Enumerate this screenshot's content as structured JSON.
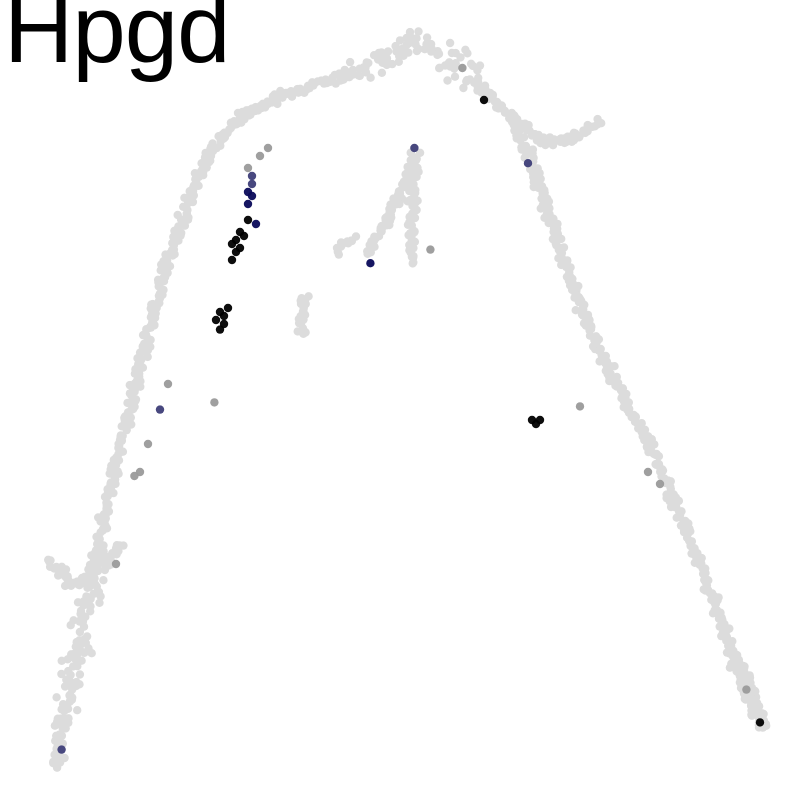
{
  "chart_data": {
    "type": "scatter",
    "title": "Hpgd",
    "xlabel": "",
    "ylabel": "",
    "xlim": [
      0,
      100
    ],
    "ylim": [
      0,
      100
    ],
    "grid": false,
    "legend": "none",
    "colors": {
      "background_cells": "#dcdcdc",
      "low_expression": "#9a9a9a",
      "mid_expression": "#3e3e78",
      "high_expression": "#0a0a5a",
      "max_expression": "#000000"
    },
    "backbone": [
      [
        7.0,
        4.0
      ],
      [
        7.5,
        8.0
      ],
      [
        8.5,
        13.0
      ],
      [
        10.0,
        20.0
      ],
      [
        11.5,
        27.0
      ],
      [
        12.5,
        33.0
      ],
      [
        14.0,
        40.0
      ],
      [
        15.5,
        46.0
      ],
      [
        17.0,
        52.0
      ],
      [
        18.5,
        58.0
      ],
      [
        20.0,
        64.0
      ],
      [
        22.0,
        70.0
      ],
      [
        24.0,
        76.0
      ],
      [
        26.0,
        80.5
      ],
      [
        29.0,
        84.5
      ],
      [
        33.0,
        87.0
      ],
      [
        38.0,
        89.0
      ],
      [
        43.0,
        90.5
      ],
      [
        48.0,
        92.5
      ],
      [
        52.0,
        94.5
      ],
      [
        55.0,
        93.5
      ],
      [
        58.0,
        91.0
      ],
      [
        61.0,
        88.0
      ],
      [
        64.0,
        85.5
      ],
      [
        66.0,
        81.0
      ],
      [
        68.0,
        75.0
      ],
      [
        70.0,
        69.0
      ],
      [
        72.5,
        62.0
      ],
      [
        75.0,
        56.0
      ],
      [
        78.0,
        50.0
      ],
      [
        81.0,
        45.0
      ],
      [
        84.0,
        38.0
      ],
      [
        87.0,
        31.0
      ],
      [
        89.5,
        24.0
      ],
      [
        92.0,
        17.0
      ],
      [
        94.0,
        11.0
      ],
      [
        95.5,
        9.0
      ]
    ],
    "side_branches": [
      {
        "name": "upper-right-arm",
        "path": [
          [
            64.0,
            85.5
          ],
          [
            68.0,
            82.0
          ],
          [
            72.0,
            83.0
          ],
          [
            75.0,
            85.0
          ]
        ]
      },
      {
        "name": "central-branch-1",
        "path": [
          [
            52.0,
            81.0
          ],
          [
            50.0,
            76.0
          ],
          [
            48.0,
            72.0
          ],
          [
            46.0,
            68.0
          ]
        ]
      },
      {
        "name": "central-branch-2",
        "path": [
          [
            52.0,
            79.0
          ],
          [
            51.5,
            72.0
          ],
          [
            51.5,
            67.0
          ]
        ]
      },
      {
        "name": "left-spur",
        "path": [
          [
            44.0,
            70.0
          ],
          [
            42.0,
            68.5
          ]
        ]
      },
      {
        "name": "small-stub",
        "path": [
          [
            38.0,
            63.0
          ],
          [
            37.5,
            58.0
          ]
        ]
      },
      {
        "name": "lower-left-fan",
        "path": [
          [
            6.0,
            30.0
          ],
          [
            9.0,
            27.0
          ],
          [
            13.0,
            29.0
          ],
          [
            15.0,
            32.0
          ]
        ]
      },
      {
        "name": "right-tip",
        "path": [
          [
            95.5,
            9.0
          ],
          [
            94.0,
            14.0
          ],
          [
            92.0,
            18.0
          ]
        ]
      }
    ],
    "expressed_cells": [
      {
        "x": 31.0,
        "y": 79.0,
        "level": "low"
      },
      {
        "x": 32.5,
        "y": 80.5,
        "level": "low"
      },
      {
        "x": 33.5,
        "y": 81.5,
        "level": "low"
      },
      {
        "x": 31.5,
        "y": 78.0,
        "level": "mid"
      },
      {
        "x": 31.5,
        "y": 77.0,
        "level": "mid"
      },
      {
        "x": 31.0,
        "y": 76.0,
        "level": "high"
      },
      {
        "x": 31.5,
        "y": 75.5,
        "level": "high"
      },
      {
        "x": 31.0,
        "y": 74.5,
        "level": "high"
      },
      {
        "x": 32.0,
        "y": 72.0,
        "level": "high"
      },
      {
        "x": 31.0,
        "y": 72.5,
        "level": "max"
      },
      {
        "x": 30.0,
        "y": 71.0,
        "level": "max"
      },
      {
        "x": 29.5,
        "y": 70.0,
        "level": "max"
      },
      {
        "x": 29.0,
        "y": 69.5,
        "level": "max"
      },
      {
        "x": 29.5,
        "y": 68.5,
        "level": "max"
      },
      {
        "x": 29.0,
        "y": 67.5,
        "level": "max"
      },
      {
        "x": 30.5,
        "y": 70.5,
        "level": "max"
      },
      {
        "x": 30.0,
        "y": 69.0,
        "level": "max"
      },
      {
        "x": 27.5,
        "y": 61.0,
        "level": "max"
      },
      {
        "x": 28.0,
        "y": 60.5,
        "level": "max"
      },
      {
        "x": 27.0,
        "y": 60.0,
        "level": "max"
      },
      {
        "x": 28.0,
        "y": 59.5,
        "level": "max"
      },
      {
        "x": 27.5,
        "y": 58.8,
        "level": "max"
      },
      {
        "x": 28.5,
        "y": 61.5,
        "level": "max"
      },
      {
        "x": 66.5,
        "y": 47.5,
        "level": "max"
      },
      {
        "x": 67.0,
        "y": 47.0,
        "level": "max"
      },
      {
        "x": 67.5,
        "y": 47.5,
        "level": "max"
      },
      {
        "x": 60.5,
        "y": 87.5,
        "level": "max"
      },
      {
        "x": 95.0,
        "y": 9.7,
        "level": "max"
      },
      {
        "x": 51.8,
        "y": 81.5,
        "level": "mid"
      },
      {
        "x": 66.0,
        "y": 79.6,
        "level": "mid"
      },
      {
        "x": 46.3,
        "y": 67.1,
        "level": "high"
      },
      {
        "x": 7.7,
        "y": 6.3,
        "level": "mid"
      },
      {
        "x": 20.0,
        "y": 48.8,
        "level": "mid"
      },
      {
        "x": 21.0,
        "y": 52.0,
        "level": "low"
      },
      {
        "x": 18.5,
        "y": 44.5,
        "level": "low"
      },
      {
        "x": 17.5,
        "y": 41.0,
        "level": "low"
      },
      {
        "x": 16.8,
        "y": 40.5,
        "level": "low"
      },
      {
        "x": 26.8,
        "y": 49.7,
        "level": "low"
      },
      {
        "x": 53.8,
        "y": 68.8,
        "level": "low"
      },
      {
        "x": 57.8,
        "y": 91.5,
        "level": "low"
      },
      {
        "x": 72.5,
        "y": 49.2,
        "level": "low"
      },
      {
        "x": 81.0,
        "y": 41.0,
        "level": "low"
      },
      {
        "x": 82.5,
        "y": 39.5,
        "level": "low"
      },
      {
        "x": 14.5,
        "y": 29.5,
        "level": "low"
      },
      {
        "x": 93.3,
        "y": 13.8,
        "level": "low"
      }
    ]
  }
}
